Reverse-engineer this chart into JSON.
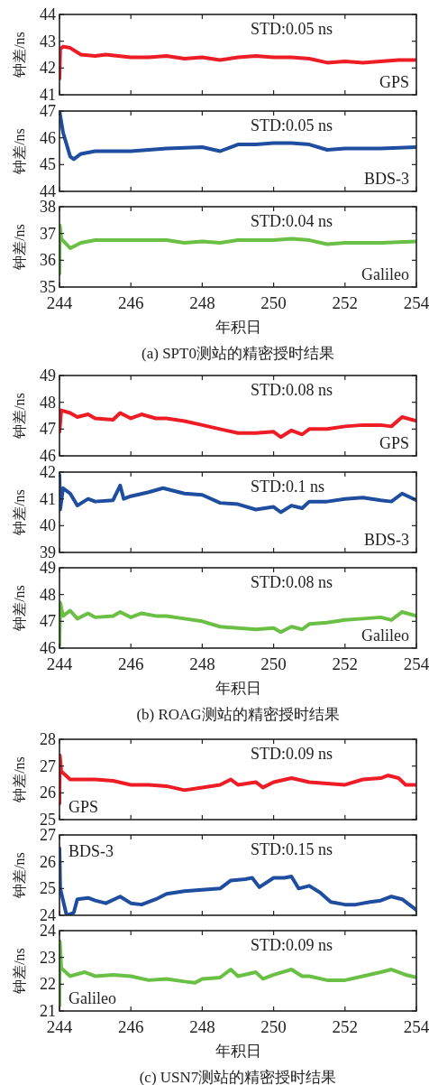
{
  "chart_data": [
    {
      "type": "line",
      "ylabel": "钟差/ns",
      "xlim": [
        244,
        254
      ],
      "xticks": [
        244,
        246,
        248,
        250,
        252,
        254
      ],
      "ylim": [
        41,
        44
      ],
      "yticks": [
        41,
        42,
        43,
        44
      ],
      "tick_labels": "y",
      "legend": "bottom right",
      "annotations": [
        "STD:0.05 ns"
      ],
      "series": [
        {
          "name": "GPS",
          "color": "#ee1c25",
          "x": [
            244,
            244.02,
            244.1,
            244.3,
            244.6,
            245,
            245.3,
            246,
            246.5,
            247,
            247.5,
            248,
            248.5,
            249,
            249.5,
            250,
            250.5,
            251,
            251.5,
            252,
            252.5,
            253,
            253.5,
            254
          ],
          "values": [
            41.6,
            42.7,
            42.8,
            42.75,
            42.5,
            42.45,
            42.5,
            42.4,
            42.4,
            42.45,
            42.35,
            42.4,
            42.3,
            42.4,
            42.45,
            42.4,
            42.4,
            42.35,
            42.2,
            42.25,
            42.2,
            42.25,
            42.3,
            42.3
          ]
        }
      ]
    },
    {
      "type": "line",
      "ylabel": "钟差/ns",
      "xlim": [
        244,
        254
      ],
      "xticks": [
        244,
        246,
        248,
        250,
        252,
        254
      ],
      "ylim": [
        44,
        47
      ],
      "yticks": [
        44,
        45,
        46,
        47
      ],
      "tick_labels": "y",
      "legend": "bottom right",
      "annotations": [
        "STD:0.05 ns"
      ],
      "series": [
        {
          "name": "BDS-3",
          "color": "#1f4ea0",
          "x": [
            244,
            244.1,
            244.3,
            244.4,
            244.6,
            245,
            246,
            246.5,
            247,
            248,
            248.5,
            249,
            249.5,
            250,
            250.5,
            251,
            251.5,
            252,
            253,
            254
          ],
          "values": [
            47.0,
            46.2,
            45.3,
            45.2,
            45.4,
            45.5,
            45.5,
            45.55,
            45.6,
            45.65,
            45.5,
            45.75,
            45.75,
            45.8,
            45.8,
            45.75,
            45.55,
            45.6,
            45.6,
            45.65
          ]
        }
      ]
    },
    {
      "type": "line",
      "ylabel": "钟差/ns",
      "xlabel": "年积日",
      "xlim": [
        244,
        254
      ],
      "xticks": [
        244,
        246,
        248,
        250,
        252,
        254
      ],
      "ylim": [
        35,
        38
      ],
      "yticks": [
        35,
        36,
        37,
        38
      ],
      "legend": "bottom right",
      "annotations": [
        "STD:0.04 ns",
        "(a) SPT0测站的精密授时结果"
      ],
      "series": [
        {
          "name": "Galileo",
          "color": "#6abf45",
          "x": [
            244,
            244.01,
            244.05,
            244.3,
            244.6,
            245,
            246,
            247,
            247.5,
            248,
            248.5,
            249,
            250,
            250.5,
            251,
            251.5,
            252,
            253,
            254
          ],
          "values": [
            35.5,
            37.3,
            36.8,
            36.45,
            36.65,
            36.75,
            36.75,
            36.75,
            36.65,
            36.7,
            36.65,
            36.75,
            36.75,
            36.8,
            36.75,
            36.6,
            36.65,
            36.65,
            36.7
          ]
        }
      ]
    },
    {
      "type": "line",
      "ylabel": "钟差/ns",
      "xlim": [
        244,
        254
      ],
      "xticks": [
        244,
        246,
        248,
        250,
        252,
        254
      ],
      "ylim": [
        46,
        49
      ],
      "yticks": [
        46,
        47,
        48,
        49
      ],
      "tick_labels": "y",
      "legend": "bottom right",
      "annotations": [
        "STD:0.08 ns"
      ],
      "series": [
        {
          "name": "GPS",
          "color": "#ee1c25",
          "x": [
            244,
            244.05,
            244.3,
            244.5,
            244.8,
            245,
            245.5,
            245.7,
            246,
            246.3,
            246.7,
            247,
            247.5,
            248,
            248.5,
            249,
            249.5,
            250,
            250.2,
            250.5,
            250.8,
            251,
            251.5,
            252,
            252.5,
            253,
            253.3,
            253.6,
            254
          ],
          "values": [
            46.9,
            47.7,
            47.6,
            47.45,
            47.55,
            47.4,
            47.35,
            47.6,
            47.4,
            47.55,
            47.4,
            47.4,
            47.3,
            47.15,
            47.0,
            46.85,
            46.85,
            46.9,
            46.7,
            46.95,
            46.8,
            47.0,
            47.0,
            47.1,
            47.15,
            47.15,
            47.1,
            47.45,
            47.3
          ]
        }
      ]
    },
    {
      "type": "line",
      "ylabel": "钟差/ns",
      "xlim": [
        244,
        254
      ],
      "xticks": [
        244,
        246,
        248,
        250,
        252,
        254
      ],
      "ylim": [
        39,
        42
      ],
      "yticks": [
        39,
        40,
        41,
        42
      ],
      "tick_labels": "y",
      "legend": "bottom right",
      "annotations": [
        "STD:0.1 ns"
      ],
      "series": [
        {
          "name": "BDS-3",
          "color": "#1f4ea0",
          "x": [
            244,
            244.02,
            244.1,
            244.3,
            244.5,
            244.8,
            245,
            245.5,
            245.7,
            245.8,
            246,
            246.5,
            246.9,
            247.5,
            248,
            248.5,
            249,
            249.5,
            250,
            250.2,
            250.5,
            250.8,
            251,
            251.5,
            252,
            252.5,
            253,
            253.3,
            253.6,
            254
          ],
          "values": [
            41.9,
            40.6,
            41.4,
            41.2,
            40.75,
            41.0,
            40.9,
            40.95,
            41.5,
            41.0,
            41.1,
            41.25,
            41.4,
            41.2,
            41.15,
            40.85,
            40.8,
            40.6,
            40.7,
            40.5,
            40.75,
            40.65,
            40.9,
            40.9,
            41.0,
            41.05,
            40.95,
            40.9,
            41.2,
            40.95
          ]
        }
      ]
    },
    {
      "type": "line",
      "ylabel": "钟差/ns",
      "xlabel": "年积日",
      "xlim": [
        244,
        254
      ],
      "xticks": [
        244,
        246,
        248,
        250,
        252,
        254
      ],
      "ylim": [
        46,
        49
      ],
      "yticks": [
        46,
        47,
        48,
        49
      ],
      "legend": "bottom right",
      "annotations": [
        "STD:0.08 ns",
        "(b) ROAG测站的精密授时结果"
      ],
      "series": [
        {
          "name": "Galileo",
          "color": "#6abf45",
          "x": [
            244,
            244.02,
            244.1,
            244.3,
            244.5,
            244.8,
            245,
            245.5,
            245.7,
            246,
            246.3,
            246.7,
            247,
            247.5,
            248,
            248.5,
            249,
            249.5,
            250,
            250.2,
            250.5,
            250.8,
            251,
            251.5,
            252,
            252.5,
            253,
            253.3,
            253.6,
            254
          ],
          "values": [
            46.1,
            47.7,
            47.2,
            47.4,
            47.1,
            47.3,
            47.15,
            47.2,
            47.35,
            47.15,
            47.3,
            47.2,
            47.2,
            47.1,
            47.0,
            46.8,
            46.75,
            46.7,
            46.75,
            46.6,
            46.8,
            46.7,
            46.9,
            46.95,
            47.05,
            47.1,
            47.15,
            47.05,
            47.35,
            47.2
          ]
        }
      ]
    },
    {
      "type": "line",
      "ylabel": "钟差/ns",
      "xlim": [
        244,
        254
      ],
      "xticks": [
        244,
        246,
        248,
        250,
        252,
        254
      ],
      "ylim": [
        25,
        28
      ],
      "yticks": [
        25,
        26,
        27,
        28
      ],
      "tick_labels": "y",
      "legend": "bottom left",
      "annotations": [
        "STD:0.09 ns"
      ],
      "series": [
        {
          "name": "GPS",
          "color": "#ee1c25",
          "x": [
            244,
            244.01,
            244.05,
            244.3,
            244.7,
            245,
            245.5,
            246,
            246.5,
            247,
            247.5,
            248,
            248.5,
            248.8,
            249,
            249.5,
            249.7,
            250,
            250.5,
            251,
            251.5,
            252,
            252.5,
            253,
            253.2,
            253.5,
            253.7,
            254
          ],
          "values": [
            25.6,
            27.4,
            26.8,
            26.5,
            26.5,
            26.5,
            26.45,
            26.3,
            26.3,
            26.25,
            26.1,
            26.2,
            26.3,
            26.5,
            26.3,
            26.4,
            26.2,
            26.4,
            26.55,
            26.4,
            26.35,
            26.3,
            26.5,
            26.55,
            26.65,
            26.55,
            26.3,
            26.3
          ]
        }
      ]
    },
    {
      "type": "line",
      "ylabel": "钟差/ns",
      "xlim": [
        244,
        254
      ],
      "xticks": [
        244,
        246,
        248,
        250,
        252,
        254
      ],
      "ylim": [
        24,
        27
      ],
      "yticks": [
        24,
        25,
        26,
        27
      ],
      "tick_labels": "y",
      "legend": "top left",
      "annotations": [
        "STD:0.15 ns"
      ],
      "series": [
        {
          "name": "BDS-3",
          "color": "#1f4ea0",
          "x": [
            244,
            244.01,
            244.02,
            244.2,
            244.4,
            244.5,
            244.8,
            245,
            245.3,
            245.7,
            246,
            246.3,
            246.7,
            247,
            247.5,
            248,
            248.5,
            248.8,
            249.2,
            249.4,
            249.6,
            250,
            250.3,
            250.5,
            250.7,
            251,
            251.3,
            251.6,
            252,
            252.3,
            252.7,
            253,
            253.3,
            253.6,
            253.8,
            254
          ],
          "values": [
            26.5,
            25.8,
            25.0,
            24.0,
            24.1,
            24.6,
            24.65,
            24.55,
            24.45,
            24.7,
            24.45,
            24.4,
            24.6,
            24.8,
            24.9,
            24.95,
            25.0,
            25.3,
            25.35,
            25.4,
            25.05,
            25.4,
            25.4,
            25.45,
            25.0,
            25.1,
            24.85,
            24.5,
            24.4,
            24.4,
            24.5,
            24.55,
            24.7,
            24.6,
            24.4,
            24.2
          ]
        }
      ]
    },
    {
      "type": "line",
      "ylabel": "钟差/ns",
      "xlabel": "年积日",
      "xlim": [
        244,
        254
      ],
      "xticks": [
        244,
        246,
        248,
        250,
        252,
        254
      ],
      "ylim": [
        21,
        24
      ],
      "yticks": [
        21,
        22,
        23,
        24
      ],
      "legend": "bottom left",
      "annotations": [
        "STD:0.09 ns",
        "(c) USN7测站的精密授时结果"
      ],
      "series": [
        {
          "name": "Galileo",
          "color": "#6abf45",
          "x": [
            244,
            244.01,
            244.05,
            244.3,
            244.7,
            245,
            245.5,
            246,
            246.5,
            247,
            247.5,
            247.8,
            248,
            248.5,
            248.8,
            249,
            249.5,
            249.7,
            250,
            250.5,
            250.8,
            251,
            251.5,
            252,
            252.5,
            253,
            253.3,
            253.7,
            254
          ],
          "values": [
            21.2,
            23.6,
            22.6,
            22.3,
            22.45,
            22.3,
            22.35,
            22.3,
            22.15,
            22.2,
            22.1,
            22.05,
            22.2,
            22.25,
            22.55,
            22.3,
            22.45,
            22.2,
            22.35,
            22.55,
            22.3,
            22.3,
            22.15,
            22.15,
            22.3,
            22.45,
            22.55,
            22.35,
            22.25
          ]
        }
      ]
    }
  ]
}
